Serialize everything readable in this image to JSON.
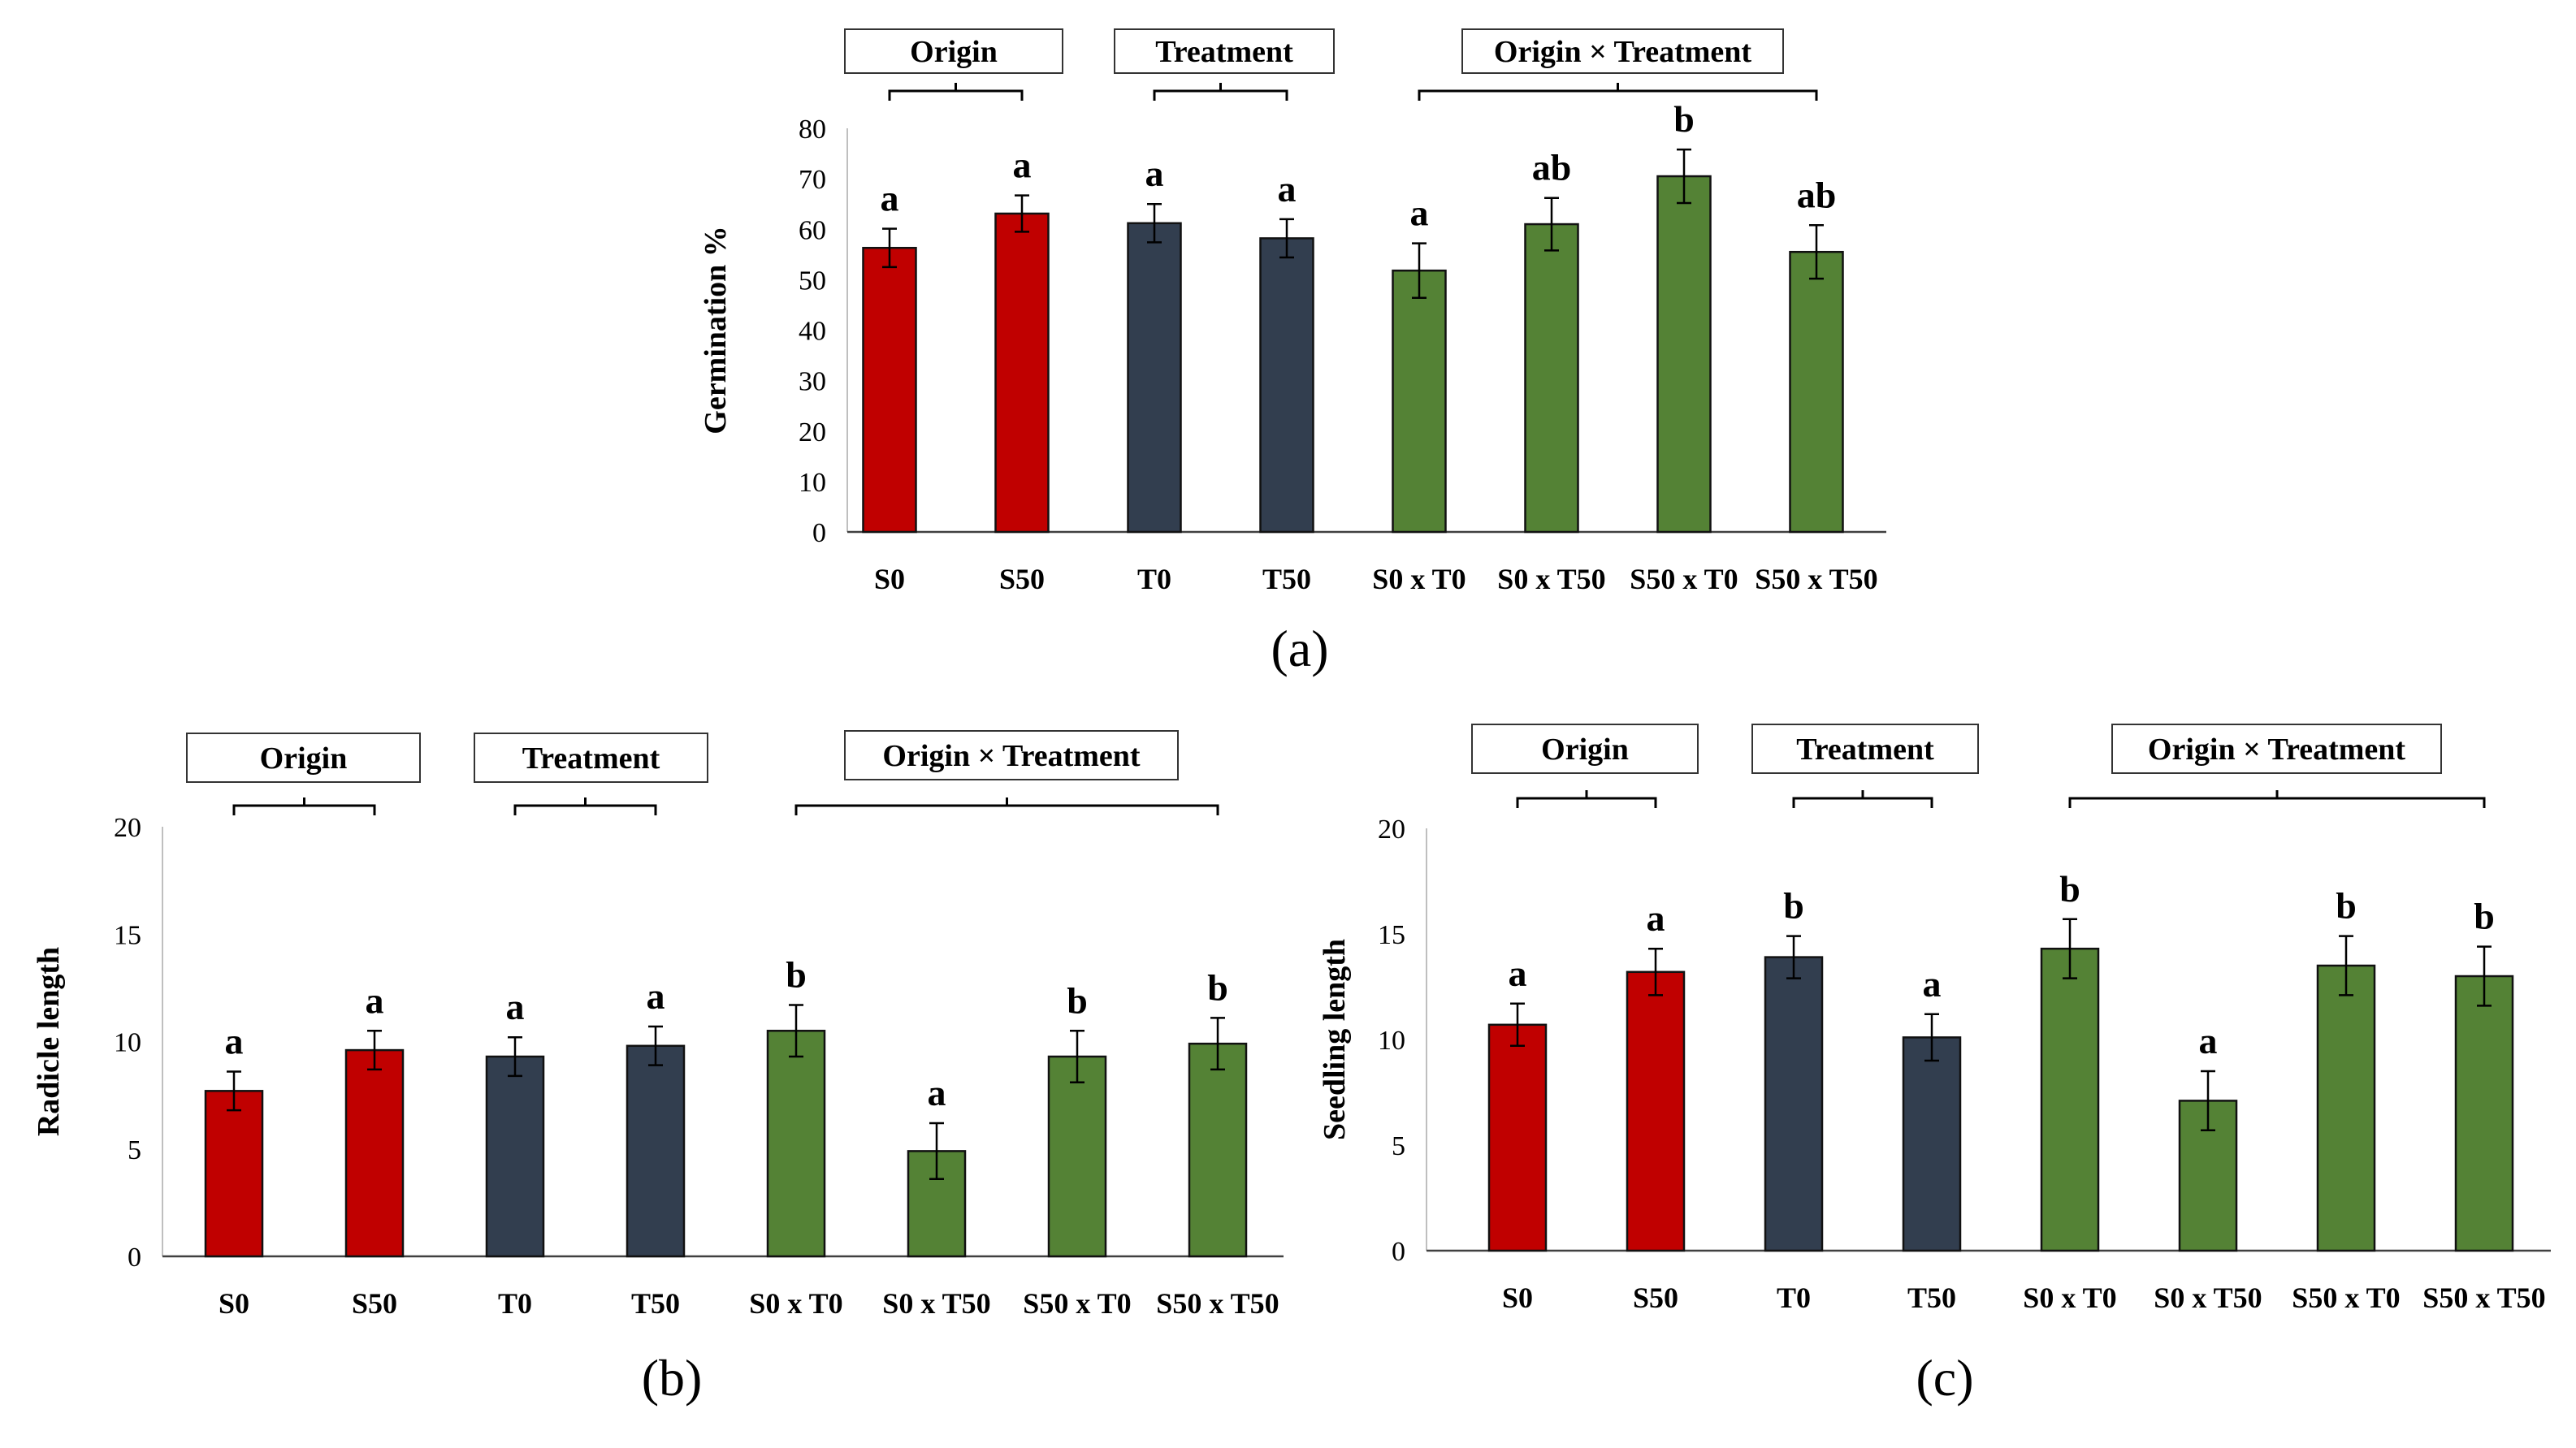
{
  "figure": {
    "colors": {
      "origin": "#C00000",
      "treatment": "#323E4F",
      "interaction": "#548235"
    },
    "group_labels": [
      "Origin",
      "Treatment",
      "Origin × Treatment"
    ]
  },
  "chart_data": [
    {
      "panel": "(a)",
      "type": "bar",
      "ylabel": "Germination %",
      "ylim": [
        0,
        80
      ],
      "yticks": [
        0,
        10,
        20,
        30,
        40,
        50,
        60,
        70,
        80
      ],
      "categories": [
        "S0",
        "S50",
        "T0",
        "T50",
        "S0 x T0",
        "S0 x T50",
        "S50 x T0",
        "S50 x T50"
      ],
      "values": [
        56.3,
        63.1,
        61.2,
        58.2,
        51.8,
        61.0,
        70.5,
        55.5
      ],
      "errors": [
        3.8,
        3.6,
        3.8,
        3.8,
        5.4,
        5.2,
        5.3,
        5.3
      ],
      "letters": [
        "a",
        "a",
        "a",
        "a",
        "a",
        "ab",
        "b",
        "ab"
      ],
      "groups": [
        {
          "label": "Origin",
          "color_key": "origin",
          "from": 0,
          "to": 1
        },
        {
          "label": "Treatment",
          "color_key": "treatment",
          "from": 2,
          "to": 3
        },
        {
          "label": "Origin × Treatment",
          "color_key": "interaction",
          "from": 4,
          "to": 7
        }
      ]
    },
    {
      "panel": "(b)",
      "type": "bar",
      "ylabel": "Radicle length",
      "ylim": [
        0,
        20
      ],
      "yticks": [
        0,
        5,
        10,
        15,
        20
      ],
      "categories": [
        "S0",
        "S50",
        "T0",
        "T50",
        "S0 x T0",
        "S0 x T50",
        "S50 x T0",
        "S50 x T50"
      ],
      "values": [
        7.7,
        9.6,
        9.3,
        9.8,
        10.5,
        4.9,
        9.3,
        9.9
      ],
      "errors": [
        0.9,
        0.9,
        0.9,
        0.9,
        1.2,
        1.3,
        1.2,
        1.2
      ],
      "letters": [
        "a",
        "a",
        "a",
        "a",
        "b",
        "a",
        "b",
        "b"
      ],
      "groups": [
        {
          "label": "Origin",
          "color_key": "origin",
          "from": 0,
          "to": 1
        },
        {
          "label": "Treatment",
          "color_key": "treatment",
          "from": 2,
          "to": 3
        },
        {
          "label": "Origin × Treatment",
          "color_key": "interaction",
          "from": 4,
          "to": 7
        }
      ]
    },
    {
      "panel": "(c)",
      "type": "bar",
      "ylabel": "Seedling length",
      "ylim": [
        0,
        20
      ],
      "yticks": [
        0,
        5,
        10,
        15,
        20
      ],
      "categories": [
        "S0",
        "S50",
        "T0",
        "T50",
        "S0 x T0",
        "S0 x T50",
        "S50 x T0",
        "S50 x T50"
      ],
      "values": [
        10.7,
        13.2,
        13.9,
        10.1,
        14.3,
        7.1,
        13.5,
        13.0
      ],
      "errors": [
        1.0,
        1.1,
        1.0,
        1.1,
        1.4,
        1.4,
        1.4,
        1.4
      ],
      "letters": [
        "a",
        "a",
        "b",
        "a",
        "b",
        "a",
        "b",
        "b"
      ],
      "groups": [
        {
          "label": "Origin",
          "color_key": "origin",
          "from": 0,
          "to": 1
        },
        {
          "label": "Treatment",
          "color_key": "treatment",
          "from": 2,
          "to": 3
        },
        {
          "label": "Origin × Treatment",
          "color_key": "interaction",
          "from": 4,
          "to": 7
        }
      ]
    }
  ]
}
